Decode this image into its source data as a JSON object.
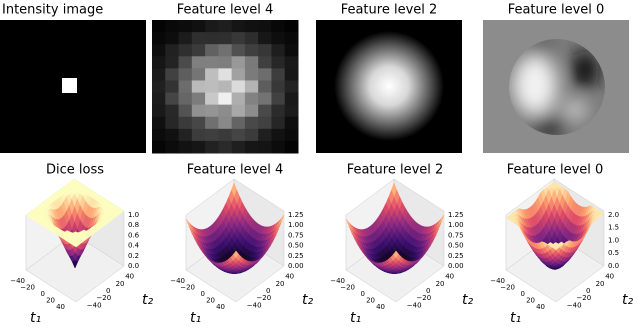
{
  "top_row": [
    {
      "title": "Intensity image"
    },
    {
      "title": "Feature level 4"
    },
    {
      "title": "Feature level 2"
    },
    {
      "title": "Feature level 0"
    }
  ],
  "bottom_row": [
    {
      "title": "Dice loss",
      "z_ticks": [
        "0.0",
        "0.2",
        "0.4",
        "0.6",
        "0.8",
        "1.0"
      ],
      "x_ticks": [
        "−40",
        "−20",
        "0",
        "20",
        "40"
      ],
      "y_ticks": [
        "−40",
        "−20",
        "0",
        "20",
        "40"
      ],
      "x_label": "t₁",
      "y_label": "t₂"
    },
    {
      "title": "Feature level 4",
      "z_ticks": [
        "0.00",
        "0.25",
        "0.50",
        "0.75",
        "1.00",
        "1.25"
      ],
      "x_ticks": [
        "−40",
        "−20",
        "0",
        "20",
        "40"
      ],
      "y_ticks": [
        "−40",
        "−20",
        "0",
        "20",
        "40"
      ],
      "x_label": "t₁",
      "y_label": "t₂"
    },
    {
      "title": "Feature level 2",
      "z_ticks": [
        "0.00",
        "0.25",
        "0.50",
        "0.75",
        "1.00",
        "1.25"
      ],
      "x_ticks": [
        "−40",
        "−20",
        "0",
        "20",
        "40"
      ],
      "y_ticks": [
        "−40",
        "−20",
        "0",
        "20",
        "40"
      ],
      "x_label": "t₁",
      "y_label": "t₂"
    },
    {
      "title": "Feature level 0",
      "z_ticks": [
        "0.0",
        "0.5",
        "1.0",
        "1.5",
        "2.0"
      ],
      "x_ticks": [
        "−40",
        "−20",
        "0",
        "20",
        "40"
      ],
      "y_ticks": [
        "−40",
        "−20",
        "0",
        "20",
        "40"
      ],
      "x_label": "t₁",
      "y_label": "t₂"
    }
  ]
}
